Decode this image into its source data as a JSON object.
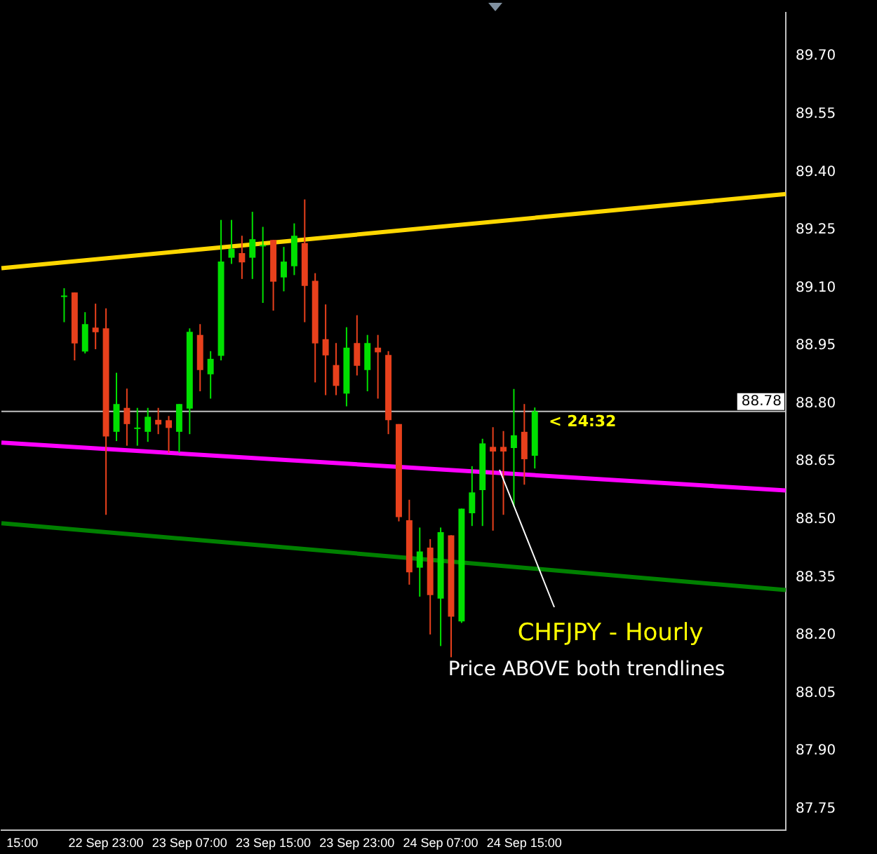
{
  "chart_data": {
    "type": "candlestick",
    "title": "CHFJPY - Hourly",
    "subtitle": "Price ABOVE both trendlines",
    "annotations": [
      "< 24:32"
    ],
    "categories": [
      null,
      null,
      "15:00",
      null,
      null,
      null,
      null,
      null,
      null,
      null,
      "22 Sep 23:00",
      null,
      null,
      null,
      null,
      null,
      null,
      null,
      "23 Sep 07:00",
      null,
      null,
      null,
      null,
      null,
      null,
      null,
      "23 Sep 15:00",
      null,
      null,
      null,
      null,
      null,
      null,
      null,
      "23 Sep 23:00",
      null,
      null,
      null,
      null,
      null,
      null,
      null,
      "24 Sep 07:00",
      null,
      null,
      null,
      null,
      null,
      null,
      null,
      "24 Sep 15:00",
      null,
      null,
      null,
      null,
      null,
      null,
      null,
      null,
      null,
      null,
      null,
      null,
      null,
      null,
      null,
      null,
      null,
      null,
      null,
      null,
      null,
      null,
      null,
      null,
      null
    ],
    "ohlc": [
      null,
      null,
      null,
      null,
      null,
      null,
      [
        89.078,
        89.099,
        89.011,
        89.08
      ],
      [
        89.088,
        89.088,
        88.912,
        88.956
      ],
      [
        88.935,
        89.037,
        88.93,
        89.006
      ],
      [
        88.997,
        89.059,
        88.941,
        88.985
      ],
      [
        88.995,
        89.047,
        88.512,
        88.715
      ],
      [
        88.727,
        88.88,
        88.703,
        88.799
      ],
      [
        88.789,
        88.839,
        88.691,
        88.747
      ],
      [
        88.737,
        88.789,
        88.691,
        88.738
      ],
      [
        88.727,
        88.789,
        88.701,
        88.766
      ],
      [
        88.758,
        88.789,
        88.721,
        88.746
      ],
      [
        88.757,
        88.768,
        88.673,
        88.737
      ],
      [
        88.727,
        88.799,
        88.673,
        88.799
      ],
      [
        88.787,
        88.995,
        88.721,
        88.986
      ],
      [
        88.978,
        89.006,
        88.832,
        88.887
      ],
      [
        88.876,
        88.936,
        88.813,
        88.916
      ],
      [
        88.924,
        89.276,
        88.912,
        89.168
      ],
      [
        89.178,
        89.276,
        89.162,
        89.201
      ],
      [
        89.19,
        89.235,
        89.123,
        89.166
      ],
      [
        89.178,
        89.297,
        89.123,
        89.226
      ],
      [
        89.209,
        89.258,
        89.061,
        89.211
      ],
      [
        89.224,
        89.224,
        89.041,
        89.116
      ],
      [
        89.127,
        89.206,
        89.091,
        89.168
      ],
      [
        89.156,
        89.267,
        89.133,
        89.235
      ],
      [
        89.216,
        89.329,
        89.011,
        89.105
      ],
      [
        89.118,
        89.138,
        88.855,
        88.956
      ],
      [
        88.967,
        89.057,
        88.822,
        88.925
      ],
      [
        88.9,
        88.957,
        88.822,
        88.846
      ],
      [
        88.826,
        88.998,
        88.793,
        88.945
      ],
      [
        88.957,
        89.029,
        88.873,
        88.898
      ],
      [
        88.887,
        88.978,
        88.832,
        88.957
      ],
      [
        88.945,
        88.978,
        88.813,
        88.933
      ],
      [
        88.926,
        88.936,
        88.721,
        88.757
      ],
      [
        88.747,
        88.747,
        88.495,
        88.506
      ],
      [
        88.498,
        88.551,
        88.331,
        88.363
      ],
      [
        88.375,
        88.479,
        88.3,
        88.417
      ],
      [
        88.427,
        88.449,
        88.202,
        88.304
      ],
      [
        88.295,
        88.479,
        88.172,
        88.467
      ],
      [
        88.459,
        88.459,
        88.143,
        88.248
      ],
      [
        88.236,
        88.528,
        88.232,
        88.528
      ],
      [
        88.516,
        88.638,
        88.483,
        88.57
      ],
      [
        88.576,
        88.709,
        88.483,
        88.697
      ],
      [
        88.688,
        88.739,
        88.471,
        88.676
      ],
      [
        88.688,
        88.729,
        88.512,
        88.676
      ],
      [
        88.685,
        88.838,
        88.533,
        88.718
      ],
      [
        88.727,
        88.799,
        88.59,
        88.656
      ],
      [
        88.665,
        88.79,
        88.632,
        88.78
      ],
      null,
      null,
      null,
      null,
      null,
      null,
      null,
      null,
      null,
      null,
      null,
      null,
      null,
      null,
      null,
      null,
      null,
      null,
      null,
      null,
      null,
      null,
      null,
      null
    ],
    "colors": [
      null,
      null,
      null,
      null,
      null,
      null,
      "#00e000",
      "#e8401c",
      "#00e000",
      "#e8401c",
      "#e8401c",
      "#00e000",
      "#e8401c",
      "#00e000",
      "#00e000",
      "#e8401c",
      "#e8401c",
      "#00e000",
      "#00e000",
      "#e8401c",
      "#00e000",
      "#00e000",
      "#00e000",
      "#e8401c",
      "#00e000",
      "#00e000",
      "#e8401c",
      "#00e000",
      "#00e000",
      "#e8401c",
      "#e8401c",
      "#e8401c",
      "#e8401c",
      "#00e000",
      "#e8401c",
      "#00e000",
      "#e8401c",
      "#e8401c",
      "#e8401c",
      "#e8401c",
      "#00e000",
      "#e8401c",
      "#00e000",
      "#e8401c",
      "#00e000",
      "#00e000",
      "#00e000",
      "#e8401c",
      "#e8401c",
      "#00e000",
      "#e8401c",
      "#00e000",
      null,
      null,
      null,
      null,
      null,
      null,
      null,
      null,
      null,
      null,
      null,
      null,
      null,
      null,
      null,
      null,
      null,
      null,
      null,
      null,
      null,
      null,
      null,
      null
    ],
    "series": [
      {
        "type": "line",
        "values": [
          89.151,
          null,
          null,
          null,
          null,
          null,
          null,
          null,
          null,
          null,
          null,
          null,
          null,
          null,
          null,
          null,
          null,
          null,
          null,
          null,
          null,
          null,
          null,
          null,
          null,
          null,
          null,
          null,
          null,
          null,
          null,
          null,
          null,
          null,
          null,
          null,
          null,
          null,
          null,
          null,
          null,
          null,
          null,
          null,
          null,
          null,
          null,
          null,
          null,
          null,
          null,
          null,
          null,
          null,
          null,
          null,
          null,
          null,
          null,
          null,
          null,
          null,
          null,
          null,
          null,
          null,
          null,
          null,
          null,
          null,
          null,
          null,
          null,
          null,
          null,
          89.343
        ],
        "color": "#ffd700"
      },
      {
        "type": "line",
        "values": [
          88.699,
          null,
          null,
          null,
          null,
          null,
          null,
          null,
          null,
          null,
          null,
          null,
          null,
          null,
          null,
          null,
          null,
          null,
          null,
          null,
          null,
          null,
          null,
          null,
          null,
          null,
          null,
          null,
          null,
          null,
          null,
          null,
          null,
          null,
          null,
          null,
          null,
          null,
          null,
          null,
          null,
          null,
          null,
          null,
          null,
          null,
          null,
          null,
          null,
          null,
          null,
          null,
          null,
          null,
          null,
          null,
          null,
          null,
          null,
          null,
          null,
          null,
          null,
          null,
          null,
          null,
          null,
          null,
          null,
          null,
          null,
          null,
          null,
          null,
          null,
          88.575
        ],
        "color": "#ff00ff"
      },
      {
        "type": "line",
        "values": [
          88.49,
          null,
          null,
          null,
          null,
          null,
          null,
          null,
          null,
          null,
          null,
          null,
          null,
          null,
          null,
          null,
          null,
          null,
          null,
          null,
          null,
          null,
          null,
          null,
          null,
          null,
          null,
          null,
          null,
          null,
          null,
          null,
          null,
          null,
          null,
          null,
          null,
          null,
          null,
          null,
          null,
          null,
          null,
          null,
          null,
          null,
          null,
          null,
          null,
          null,
          null,
          null,
          null,
          null,
          null,
          null,
          null,
          null,
          null,
          null,
          null,
          null,
          null,
          null,
          null,
          null,
          null,
          null,
          null,
          null,
          null,
          null,
          null,
          null,
          null,
          88.317
        ],
        "color": "#008000"
      }
    ],
    "ref_lines": [
      {
        "axis": "y",
        "value": 88.78,
        "label": "88.78",
        "color": "#c0c0c0"
      }
    ],
    "ylim": [
      87.695,
      89.813
    ],
    "yticks": [
      {
        "value": 87.75,
        "label": "87.75"
      },
      {
        "value": 87.9,
        "label": "87.90"
      },
      {
        "value": 88.05,
        "label": "88.05"
      },
      {
        "value": 88.2,
        "label": "88.20"
      },
      {
        "value": 88.35,
        "label": "88.35"
      },
      {
        "value": 88.5,
        "label": "88.50"
      },
      {
        "value": 88.65,
        "label": "88.65"
      },
      {
        "value": 88.8,
        "label": "88.80"
      },
      {
        "value": 88.95,
        "label": "88.95"
      },
      {
        "value": 89.1,
        "label": "89.10"
      },
      {
        "value": 89.25,
        "label": "89.25"
      },
      {
        "value": 89.4,
        "label": "89.40"
      },
      {
        "value": 89.55,
        "label": "89.55"
      },
      {
        "value": 89.7,
        "label": "89.70"
      }
    ],
    "grid": false,
    "legend": false
  }
}
